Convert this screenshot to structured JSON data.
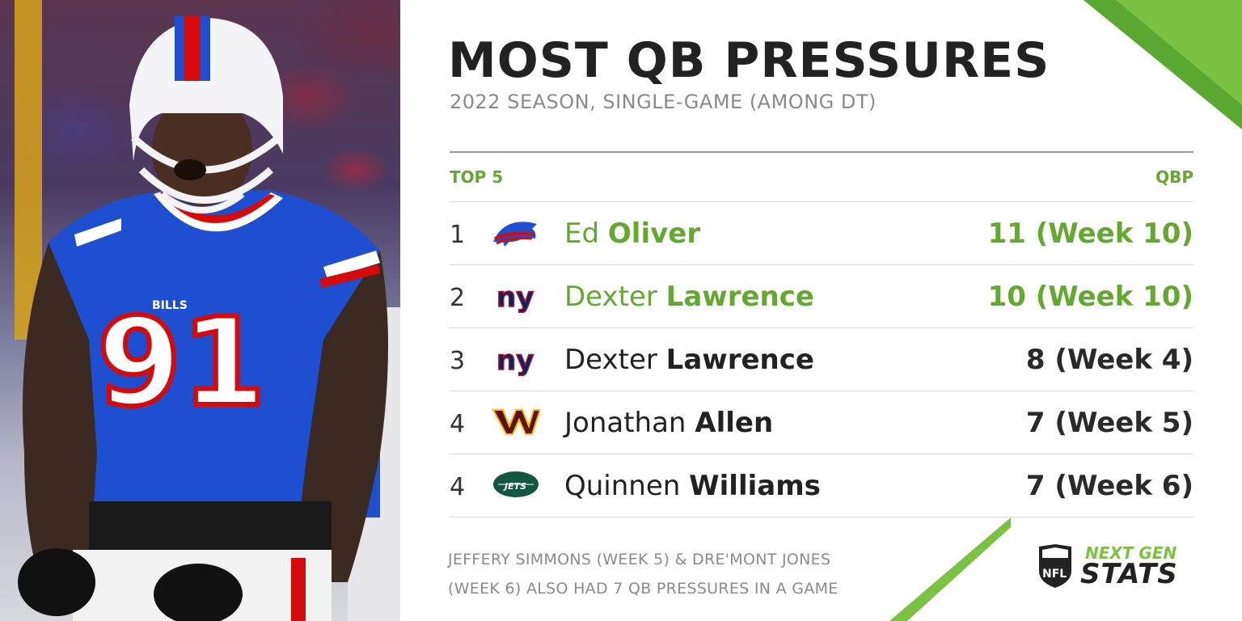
{
  "title": "MOST QB PRESSURES",
  "subtitle": "2022 SEASON, SINGLE-GAME (AMONG DT)",
  "table": {
    "col_left": "TOP 5",
    "col_right": "QBP",
    "rows": [
      {
        "rank": "1",
        "team_logo": "bills-logo",
        "first": "Ed",
        "last": "Oliver",
        "qbp": "11 (Week 10)",
        "highlight": true
      },
      {
        "rank": "2",
        "team_logo": "giants-logo",
        "first": "Dexter",
        "last": "Lawrence",
        "qbp": "10 (Week 10)",
        "highlight": true
      },
      {
        "rank": "3",
        "team_logo": "giants-logo",
        "first": "Dexter",
        "last": "Lawrence",
        "qbp": "8 (Week 4)",
        "highlight": false
      },
      {
        "rank": "4",
        "team_logo": "commanders-logo",
        "first": "Jonathan",
        "last": "Allen",
        "qbp": "7 (Week 5)",
        "highlight": false
      },
      {
        "rank": "4",
        "team_logo": "jets-logo",
        "first": "Quinnen",
        "last": "Williams",
        "qbp": "7 (Week 6)",
        "highlight": false
      }
    ]
  },
  "footnote": {
    "line1": "JEFFERY SIMMONS (WEEK 5) & DRE'MONT JONES",
    "line2": "(WEEK 6) ALSO HAD 7 QB PRESSURES IN A GAME"
  },
  "brand": {
    "top": "NEXT GEN",
    "bottom": "STATS",
    "shield_text": "NFL"
  },
  "photo": {
    "jersey_number": "91",
    "jersey_wordmark": "BILLS"
  },
  "colors": {
    "accent_green": "#64a831",
    "slash_green": "#7bc242",
    "bills_blue": "#1f4fd1",
    "bills_red": "#d50a0a",
    "giants_blue": "#0b2265",
    "giants_red": "#a71930",
    "commanders_burgundy": "#5a1414",
    "commanders_gold": "#ffb612",
    "jets_green": "#125740"
  }
}
